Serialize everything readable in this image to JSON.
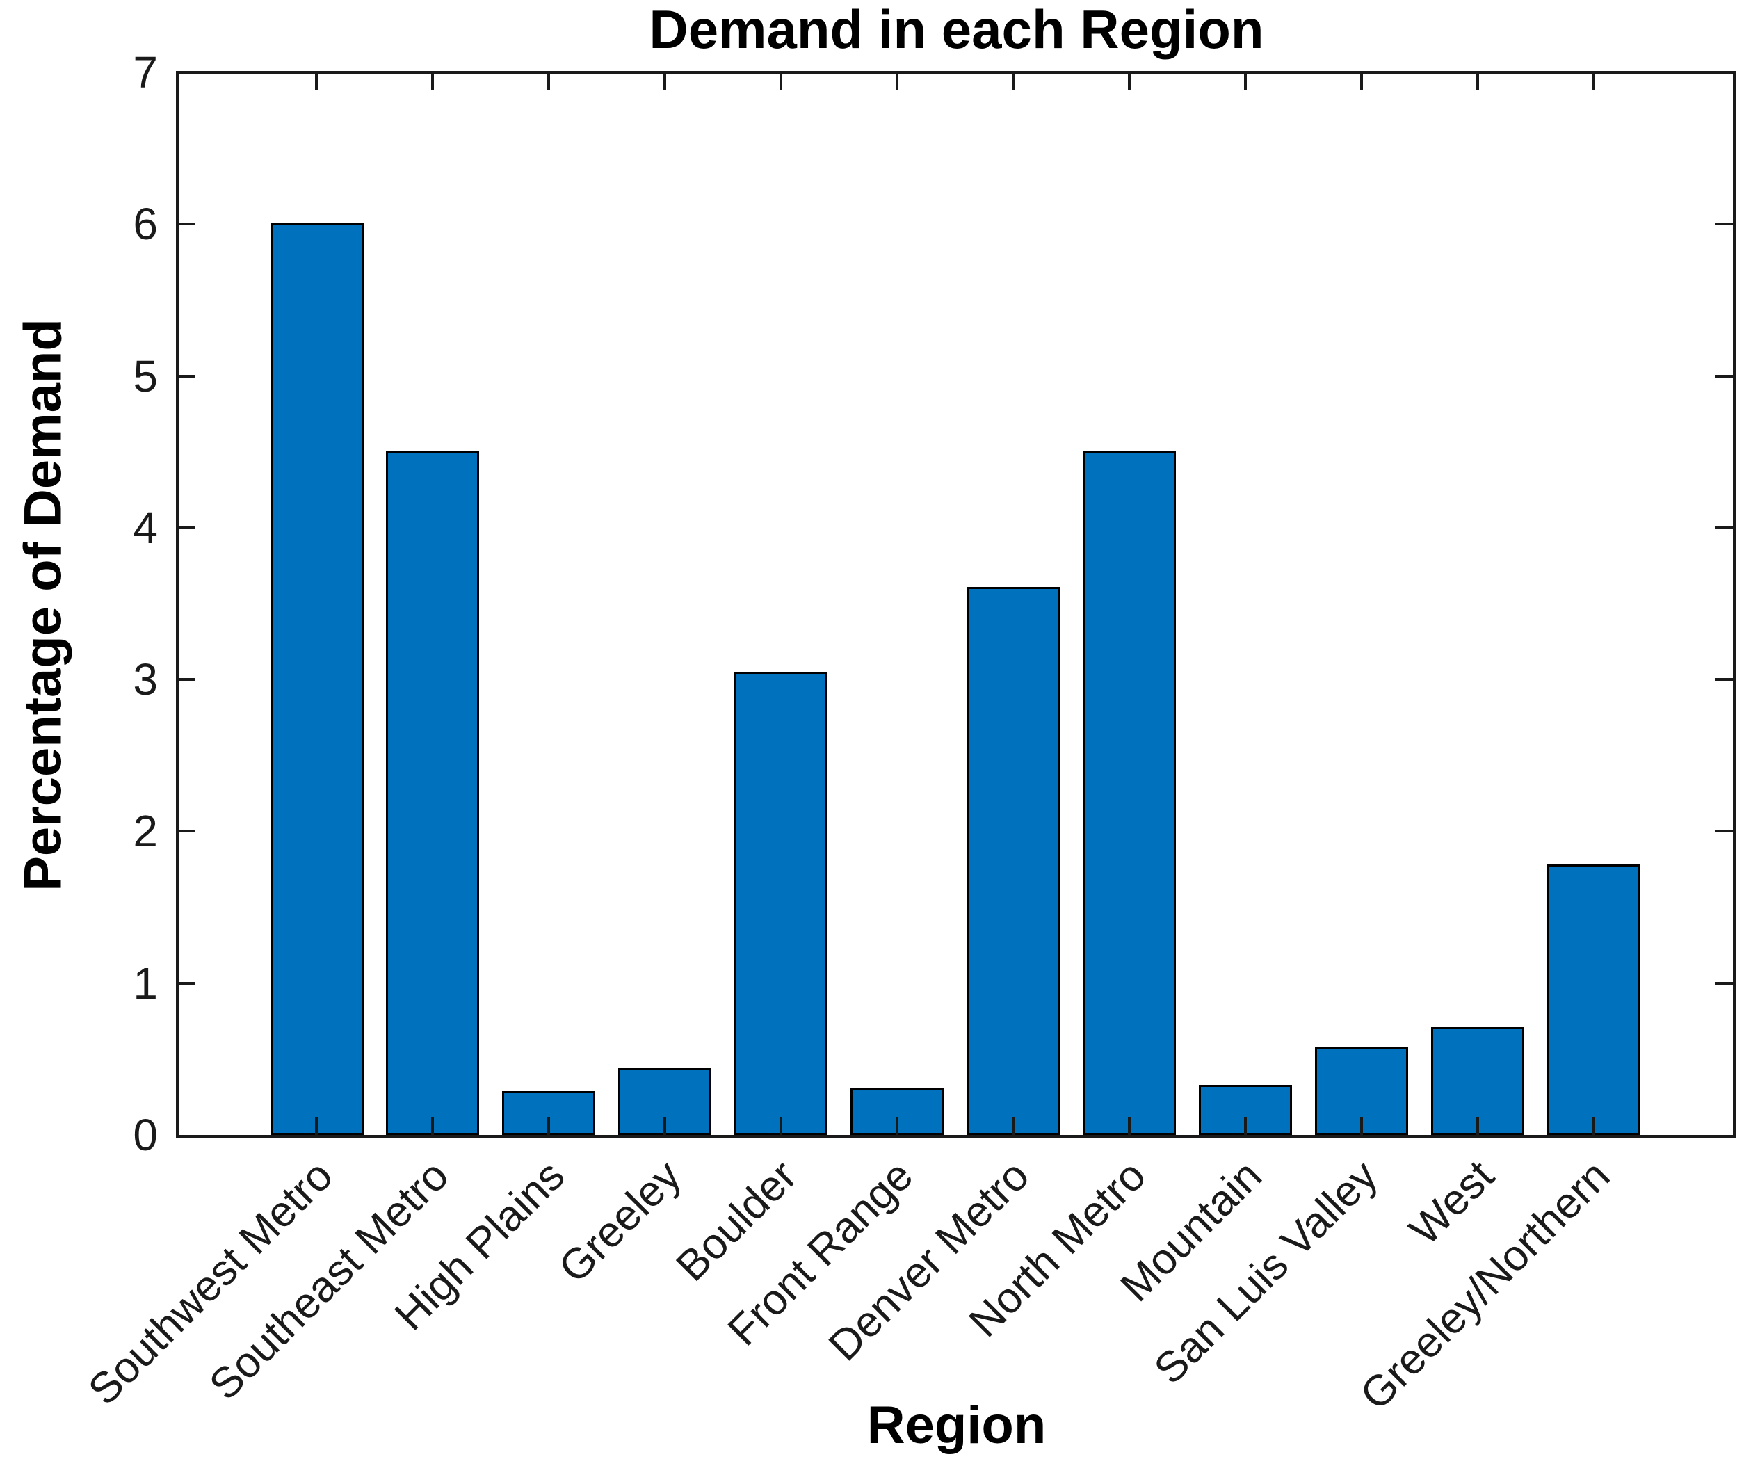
{
  "figure": {
    "title": "Demand in each Region",
    "xlabel": "Region",
    "ylabel": "Percentage of Demand"
  },
  "chart_data": {
    "type": "bar",
    "title": "Demand in each Region",
    "xlabel": "Region",
    "ylabel": "Percentage of Demand",
    "categories": [
      "Southwest Metro",
      "Southeast Metro",
      "High Plains",
      "Greeley",
      "Boulder",
      "Front Range",
      "Denver Metro",
      "North Metro",
      "Mountain",
      "San Luis Valley",
      "West",
      "Greeley/Northern"
    ],
    "values": [
      6.01,
      4.51,
      0.29,
      0.44,
      3.05,
      0.31,
      3.61,
      4.51,
      0.33,
      0.58,
      0.71,
      1.78
    ],
    "ylim": [
      0,
      7
    ],
    "yticks": [
      0,
      1,
      2,
      3,
      4,
      5,
      6,
      7
    ],
    "xtick_rotation_deg": 45,
    "grid": false,
    "legend": null,
    "bar_width_fraction": 0.8,
    "bar_color": "#0072BD",
    "bar_edge_color": "#000000",
    "axis_color": "#1a1a1a",
    "background": "#ffffff"
  }
}
